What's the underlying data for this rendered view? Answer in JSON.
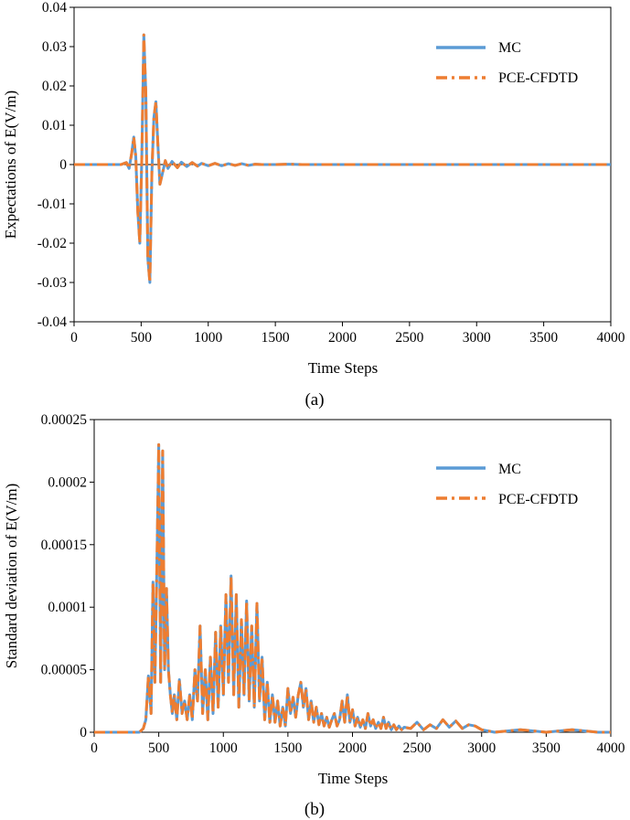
{
  "series_colors": {
    "mc": "#5b9bd5",
    "pce": "#ed7d31"
  },
  "chart_data": [
    {
      "type": "line",
      "panel": "(a)",
      "xlabel": "Time Steps",
      "ylabel": "Expectations of E(V/m)",
      "xlim": [
        0,
        4000
      ],
      "ylim": [
        -0.04,
        0.04
      ],
      "xticks": [
        0,
        500,
        1000,
        1500,
        2000,
        2500,
        3000,
        3500,
        4000
      ],
      "xtick_labels": [
        "0",
        "500",
        "1000",
        "1500",
        "2000",
        "2500",
        "3000",
        "3500",
        "4000"
      ],
      "yticks": [
        0.04,
        0.03,
        0.02,
        0.01,
        0,
        -0.01,
        -0.02,
        -0.03,
        -0.04
      ],
      "ytick_labels": [
        "0.04",
        "0.03",
        "0.02",
        "0.01",
        "0",
        "-0.01",
        "-0.02",
        "-0.03",
        "-0.04"
      ],
      "legend": [
        "MC",
        "PCE-CFDTD"
      ],
      "legend_position": "top-right",
      "series": [
        {
          "name": "MC",
          "style": "solid",
          "x": [
            0,
            350,
            390,
            410,
            430,
            445,
            460,
            475,
            490,
            505,
            520,
            535,
            550,
            565,
            580,
            595,
            610,
            625,
            640,
            660,
            680,
            700,
            730,
            770,
            800,
            840,
            880,
            920,
            950,
            1000,
            1050,
            1100,
            1150,
            1200,
            1250,
            1300,
            1350,
            1400,
            1500,
            1600,
            1700,
            1800,
            2000,
            2500,
            3000,
            3500,
            4000
          ],
          "y": [
            0,
            0,
            0.0005,
            -0.001,
            0.003,
            0.007,
            0.002,
            -0.012,
            -0.02,
            0.002,
            0.033,
            0.018,
            -0.024,
            -0.03,
            -0.002,
            0.012,
            0.016,
            0.005,
            -0.005,
            -0.002,
            0.001,
            -0.001,
            0.0008,
            -0.0008,
            0.0006,
            -0.0005,
            0.0005,
            -0.0004,
            0.0003,
            -0.0003,
            0.0003,
            -0.0003,
            0.0002,
            -0.0002,
            0.0002,
            -0.0002,
            0.0001,
            0,
            0,
            0.0001,
            0,
            0,
            0,
            0,
            0,
            0,
            0
          ]
        },
        {
          "name": "PCE-CFDTD",
          "style": "dash-dot",
          "x": [
            0,
            350,
            390,
            410,
            430,
            445,
            460,
            475,
            490,
            505,
            520,
            535,
            550,
            565,
            580,
            595,
            610,
            625,
            640,
            660,
            680,
            700,
            730,
            770,
            800,
            840,
            880,
            920,
            950,
            1000,
            1050,
            1100,
            1150,
            1200,
            1250,
            1300,
            1350,
            1400,
            1500,
            1600,
            1700,
            1800,
            2000,
            2500,
            3000,
            3500,
            4000
          ],
          "y": [
            0,
            0,
            0.0005,
            -0.001,
            0.003,
            0.007,
            0.002,
            -0.012,
            -0.02,
            0.002,
            0.033,
            0.018,
            -0.024,
            -0.03,
            -0.002,
            0.012,
            0.016,
            0.005,
            -0.005,
            -0.002,
            0.001,
            -0.001,
            0.0008,
            -0.0008,
            0.0006,
            -0.0005,
            0.0005,
            -0.0004,
            0.0003,
            -0.0003,
            0.0003,
            -0.0003,
            0.0002,
            -0.0002,
            0.0002,
            -0.0002,
            0.0001,
            0,
            0,
            0.0001,
            0,
            0,
            0,
            0,
            0,
            0,
            0
          ]
        }
      ]
    },
    {
      "type": "line",
      "panel": "(b)",
      "xlabel": "Time Steps",
      "ylabel": "Standard deviation of E(V/m)",
      "xlim": [
        0,
        4000
      ],
      "ylim": [
        0,
        0.00025
      ],
      "xticks": [
        0,
        500,
        1000,
        1500,
        2000,
        2500,
        3000,
        3500,
        4000
      ],
      "xtick_labels": [
        "0",
        "500",
        "1000",
        "1500",
        "2000",
        "2500",
        "3000",
        "3500",
        "4000"
      ],
      "yticks": [
        0.00025,
        0.0002,
        0.00015,
        0.0001,
        5e-05,
        0
      ],
      "ytick_labels": [
        "0.00025",
        "0.0002",
        "0.00015",
        "0.0001",
        "0.00005",
        "0"
      ],
      "legend": [
        "MC",
        "PCE-CFDTD"
      ],
      "legend_position": "top-right",
      "series": [
        {
          "name": "MC",
          "style": "solid",
          "x": [
            0,
            350,
            380,
            400,
            420,
            440,
            455,
            470,
            485,
            500,
            515,
            530,
            545,
            560,
            575,
            590,
            605,
            620,
            640,
            660,
            680,
            700,
            720,
            740,
            760,
            780,
            800,
            820,
            840,
            860,
            880,
            900,
            920,
            940,
            960,
            980,
            1000,
            1020,
            1040,
            1060,
            1080,
            1100,
            1120,
            1140,
            1160,
            1180,
            1200,
            1220,
            1240,
            1260,
            1280,
            1300,
            1320,
            1340,
            1360,
            1380,
            1400,
            1420,
            1440,
            1460,
            1480,
            1500,
            1520,
            1540,
            1560,
            1580,
            1600,
            1620,
            1640,
            1660,
            1680,
            1700,
            1720,
            1740,
            1760,
            1780,
            1800,
            1820,
            1840,
            1860,
            1880,
            1900,
            1920,
            1940,
            1960,
            1980,
            2000,
            2020,
            2040,
            2060,
            2080,
            2100,
            2120,
            2140,
            2160,
            2180,
            2200,
            2220,
            2240,
            2260,
            2280,
            2300,
            2320,
            2340,
            2360,
            2380,
            2400,
            2450,
            2500,
            2550,
            2600,
            2650,
            2700,
            2750,
            2800,
            2850,
            2900,
            2950,
            3000,
            3050,
            3100,
            3200,
            3300,
            3400,
            3500,
            3600,
            3700,
            3800,
            3900,
            4000
          ],
          "y": [
            0,
            0,
            3e-06,
            1e-05,
            4.5e-05,
            1.5e-05,
            0.00012,
            4e-05,
            0.00013,
            0.00023,
            4e-05,
            0.000225,
            5e-05,
            0.000115,
            5e-05,
            3e-05,
            1.5e-05,
            3e-05,
            1e-05,
            4.2e-05,
            1.5e-05,
            2.5e-05,
            1e-05,
            3e-05,
            1e-05,
            5e-05,
            2.5e-05,
            8.5e-05,
            1.5e-05,
            5e-05,
            1e-05,
            6e-05,
            1.5e-05,
            8e-05,
            2e-05,
            8.5e-05,
            3e-05,
            0.00011,
            4e-05,
            0.000125,
            3e-05,
            0.00011,
            2e-05,
            9e-05,
            3e-05,
            0.000105,
            2.5e-05,
            8.5e-05,
            2e-05,
            0.000103,
            2.5e-05,
            6e-05,
            1e-05,
            4e-05,
            8e-06,
            3e-05,
            8e-06,
            2.5e-05,
            5e-06,
            2e-05,
            5e-06,
            3.5e-05,
            1.5e-05,
            2.8e-05,
            1.2e-05,
            3e-05,
            4e-05,
            2e-05,
            3.5e-05,
            1e-05,
            2.5e-05,
            8e-06,
            2e-05,
            6e-06,
            1.5e-05,
            5e-06,
            1.2e-05,
            4e-06,
            1e-05,
            1.5e-05,
            5e-06,
            1e-05,
            2.5e-05,
            8e-06,
            3e-05,
            8e-06,
            1.8e-05,
            5e-06,
            1.2e-05,
            4e-06,
            1e-05,
            3e-06,
            1.5e-05,
            5e-06,
            1e-05,
            3e-06,
            8e-06,
            3e-06,
            1.2e-05,
            3e-06,
            8e-06,
            2e-06,
            6e-06,
            2e-06,
            5e-06,
            2e-06,
            4e-06,
            3e-06,
            8e-06,
            2e-06,
            6e-06,
            3e-06,
            1e-05,
            4e-06,
            9e-06,
            3e-06,
            6e-06,
            5e-06,
            2e-06,
            1e-06,
            0,
            1e-06,
            2e-06,
            1e-06,
            0,
            1e-06,
            2e-06,
            1e-06,
            0,
            0
          ]
        },
        {
          "name": "PCE-CFDTD",
          "style": "dash-dot",
          "x": [
            0,
            350,
            380,
            400,
            420,
            440,
            455,
            470,
            485,
            500,
            515,
            530,
            545,
            560,
            575,
            590,
            605,
            620,
            640,
            660,
            680,
            700,
            720,
            740,
            760,
            780,
            800,
            820,
            840,
            860,
            880,
            900,
            920,
            940,
            960,
            980,
            1000,
            1020,
            1040,
            1060,
            1080,
            1100,
            1120,
            1140,
            1160,
            1180,
            1200,
            1220,
            1240,
            1260,
            1280,
            1300,
            1320,
            1340,
            1360,
            1380,
            1400,
            1420,
            1440,
            1460,
            1480,
            1500,
            1520,
            1540,
            1560,
            1580,
            1600,
            1620,
            1640,
            1660,
            1680,
            1700,
            1720,
            1740,
            1760,
            1780,
            1800,
            1820,
            1840,
            1860,
            1880,
            1900,
            1920,
            1940,
            1960,
            1980,
            2000,
            2020,
            2040,
            2060,
            2080,
            2100,
            2120,
            2140,
            2160,
            2180,
            2200,
            2220,
            2240,
            2260,
            2280,
            2300,
            2320,
            2340,
            2360,
            2380,
            2400,
            2450,
            2500,
            2550,
            2600,
            2650,
            2700,
            2750,
            2800,
            2850,
            2900,
            2950,
            3000,
            3050,
            3100,
            3200,
            3300,
            3400,
            3500,
            3600,
            3700,
            3800,
            3900,
            4000
          ],
          "y": [
            0,
            0,
            3e-06,
            1e-05,
            4.5e-05,
            1.5e-05,
            0.00012,
            4e-05,
            0.00013,
            0.00023,
            4e-05,
            0.000225,
            5e-05,
            0.000115,
            5e-05,
            3e-05,
            1.5e-05,
            3e-05,
            1e-05,
            4.2e-05,
            1.5e-05,
            2.5e-05,
            1e-05,
            3e-05,
            1e-05,
            5e-05,
            2.5e-05,
            8.5e-05,
            1.5e-05,
            5e-05,
            1e-05,
            6e-05,
            1.5e-05,
            8e-05,
            2e-05,
            8.5e-05,
            3e-05,
            0.00011,
            4e-05,
            0.000125,
            3e-05,
            0.00011,
            2e-05,
            9e-05,
            3e-05,
            0.000105,
            2.5e-05,
            8.5e-05,
            2e-05,
            0.000103,
            2.5e-05,
            6e-05,
            1e-05,
            4e-05,
            8e-06,
            3e-05,
            8e-06,
            2.5e-05,
            5e-06,
            2e-05,
            5e-06,
            3.5e-05,
            1.5e-05,
            2.8e-05,
            1.2e-05,
            3e-05,
            4e-05,
            2e-05,
            3.5e-05,
            1e-05,
            2.5e-05,
            8e-06,
            2e-05,
            6e-06,
            1.5e-05,
            5e-06,
            1.2e-05,
            4e-06,
            1e-05,
            1.5e-05,
            5e-06,
            1e-05,
            2.5e-05,
            8e-06,
            3e-05,
            8e-06,
            1.8e-05,
            5e-06,
            1.2e-05,
            4e-06,
            1e-05,
            3e-06,
            1.5e-05,
            5e-06,
            1e-05,
            3e-06,
            8e-06,
            3e-06,
            1.2e-05,
            3e-06,
            8e-06,
            2e-06,
            6e-06,
            2e-06,
            5e-06,
            2e-06,
            4e-06,
            3e-06,
            8e-06,
            2e-06,
            6e-06,
            3e-06,
            1e-05,
            4e-06,
            9e-06,
            3e-06,
            6e-06,
            5e-06,
            2e-06,
            1e-06,
            0,
            1e-06,
            2e-06,
            1e-06,
            0,
            1e-06,
            2e-06,
            1e-06,
            0,
            0
          ]
        }
      ]
    }
  ]
}
